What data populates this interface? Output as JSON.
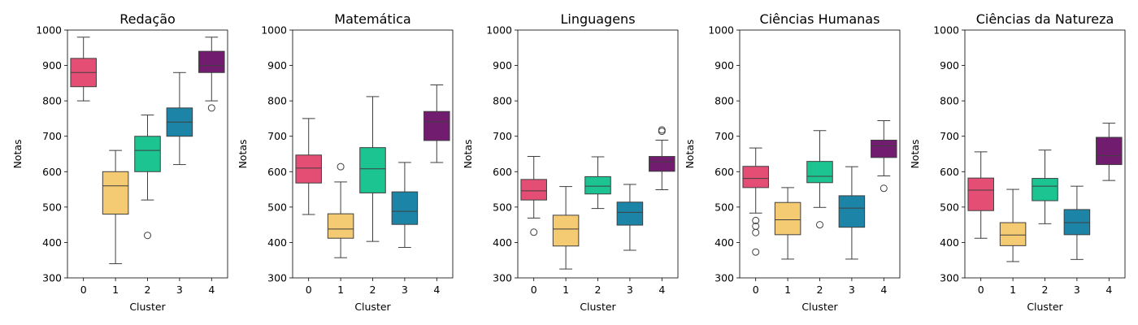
{
  "chart_data": [
    {
      "type": "box",
      "title": "Redação",
      "xlabel": "Cluster",
      "ylabel": "Notas",
      "ylim": [
        300,
        1000
      ],
      "yticks": [
        "300",
        "400",
        "500",
        "600",
        "700",
        "800",
        "900",
        "1000"
      ],
      "categories": [
        "0",
        "1",
        "2",
        "3",
        "4"
      ],
      "colors": [
        "#e44d74",
        "#f4ca72",
        "#1cc492",
        "#1c84a6",
        "#721c6f"
      ],
      "boxes": [
        {
          "whislo": 800,
          "q1": 840,
          "med": 880,
          "q3": 920,
          "whishi": 980,
          "fliers": []
        },
        {
          "whislo": 340,
          "q1": 480,
          "med": 560,
          "q3": 600,
          "whishi": 660,
          "fliers": []
        },
        {
          "whislo": 520,
          "q1": 600,
          "med": 660,
          "q3": 700,
          "whishi": 760,
          "fliers": [
            420
          ]
        },
        {
          "whislo": 620,
          "q1": 700,
          "med": 740,
          "q3": 780,
          "whishi": 880,
          "fliers": []
        },
        {
          "whislo": 800,
          "q1": 880,
          "med": 900,
          "q3": 940,
          "whishi": 980,
          "fliers": [
            780
          ]
        }
      ]
    },
    {
      "type": "box",
      "title": "Matemática",
      "xlabel": "Cluster",
      "ylabel": "Notas",
      "ylim": [
        300,
        1000
      ],
      "yticks": [
        "300",
        "400",
        "500",
        "600",
        "700",
        "800",
        "900",
        "1000"
      ],
      "categories": [
        "0",
        "1",
        "2",
        "3",
        "4"
      ],
      "colors": [
        "#e44d74",
        "#f4ca72",
        "#1cc492",
        "#1c84a6",
        "#721c6f"
      ],
      "boxes": [
        {
          "whislo": 479,
          "q1": 568,
          "med": 610,
          "q3": 647,
          "whishi": 750,
          "fliers": []
        },
        {
          "whislo": 357,
          "q1": 412,
          "med": 438,
          "q3": 481,
          "whishi": 571,
          "fliers": [
            614
          ]
        },
        {
          "whislo": 403,
          "q1": 540,
          "med": 608,
          "q3": 668,
          "whishi": 812,
          "fliers": []
        },
        {
          "whislo": 386,
          "q1": 451,
          "med": 488,
          "q3": 543,
          "whishi": 626,
          "fliers": []
        },
        {
          "whislo": 626,
          "q1": 688,
          "med": 741,
          "q3": 770,
          "whishi": 845,
          "fliers": []
        }
      ]
    },
    {
      "type": "box",
      "title": "Linguagens",
      "xlabel": "Cluster",
      "ylabel": "Notas",
      "ylim": [
        300,
        1000
      ],
      "yticks": [
        "300",
        "400",
        "500",
        "600",
        "700",
        "800",
        "900",
        "1000"
      ],
      "categories": [
        "0",
        "1",
        "2",
        "3",
        "4"
      ],
      "colors": [
        "#e44d74",
        "#f4ca72",
        "#1cc492",
        "#1c84a6",
        "#721c6f"
      ],
      "boxes": [
        {
          "whislo": 469,
          "q1": 520,
          "med": 546,
          "q3": 578,
          "whishi": 643,
          "fliers": [
            429
          ]
        },
        {
          "whislo": 325,
          "q1": 390,
          "med": 438,
          "q3": 477,
          "whishi": 558,
          "fliers": []
        },
        {
          "whislo": 496,
          "q1": 537,
          "med": 559,
          "q3": 586,
          "whishi": 642,
          "fliers": []
        },
        {
          "whislo": 378,
          "q1": 449,
          "med": 485,
          "q3": 514,
          "whishi": 564,
          "fliers": []
        },
        {
          "whislo": 549,
          "q1": 601,
          "med": 628,
          "q3": 643,
          "whishi": 689,
          "fliers": [
            714,
            718
          ]
        }
      ]
    },
    {
      "type": "box",
      "title": "Ciências Humanas",
      "xlabel": "Cluster",
      "ylabel": "Notas",
      "ylim": [
        300,
        1000
      ],
      "yticks": [
        "300",
        "400",
        "500",
        "600",
        "700",
        "800",
        "900",
        "1000"
      ],
      "categories": [
        "0",
        "1",
        "2",
        "3",
        "4"
      ],
      "colors": [
        "#e44d74",
        "#f4ca72",
        "#1cc492",
        "#1c84a6",
        "#721c6f"
      ],
      "boxes": [
        {
          "whislo": 483,
          "q1": 555,
          "med": 581,
          "q3": 615,
          "whishi": 667,
          "fliers": [
            462,
            446,
            428,
            373
          ]
        },
        {
          "whislo": 353,
          "q1": 422,
          "med": 464,
          "q3": 513,
          "whishi": 555,
          "fliers": []
        },
        {
          "whislo": 499,
          "q1": 569,
          "med": 587,
          "q3": 629,
          "whishi": 716,
          "fliers": [
            450
          ]
        },
        {
          "whislo": 353,
          "q1": 443,
          "med": 497,
          "q3": 532,
          "whishi": 614,
          "fliers": []
        },
        {
          "whislo": 588,
          "q1": 640,
          "med": 673,
          "q3": 689,
          "whishi": 744,
          "fliers": [
            553
          ]
        }
      ]
    },
    {
      "type": "box",
      "title": "Ciências da Natureza",
      "xlabel": "Cluster",
      "ylabel": "Notas",
      "ylim": [
        300,
        1000
      ],
      "yticks": [
        "300",
        "400",
        "500",
        "600",
        "700",
        "800",
        "900",
        "1000"
      ],
      "categories": [
        "0",
        "1",
        "2",
        "3",
        "4"
      ],
      "colors": [
        "#e44d74",
        "#f4ca72",
        "#1cc492",
        "#1c84a6",
        "#721c6f"
      ],
      "boxes": [
        {
          "whislo": 412,
          "q1": 490,
          "med": 548,
          "q3": 582,
          "whishi": 656,
          "fliers": []
        },
        {
          "whislo": 346,
          "q1": 391,
          "med": 421,
          "q3": 456,
          "whishi": 550,
          "fliers": []
        },
        {
          "whislo": 453,
          "q1": 518,
          "med": 559,
          "q3": 581,
          "whishi": 661,
          "fliers": []
        },
        {
          "whislo": 352,
          "q1": 422,
          "med": 456,
          "q3": 493,
          "whishi": 559,
          "fliers": []
        },
        {
          "whislo": 575,
          "q1": 620,
          "med": 645,
          "q3": 697,
          "whishi": 737,
          "fliers": []
        }
      ]
    }
  ]
}
